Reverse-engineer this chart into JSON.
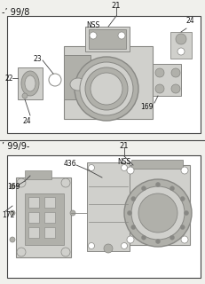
{
  "bg_color": "#f0f0ec",
  "white": "#ffffff",
  "line_color": "#444444",
  "gray_light": "#d0d0cc",
  "gray_mid": "#b0b0aa",
  "gray_dark": "#888884",
  "text_color": "#111111",
  "figsize": [
    2.31,
    3.2
  ],
  "dpi": 100,
  "top_label": "-’ 99/8",
  "bottom_label": "’ 99/9-"
}
